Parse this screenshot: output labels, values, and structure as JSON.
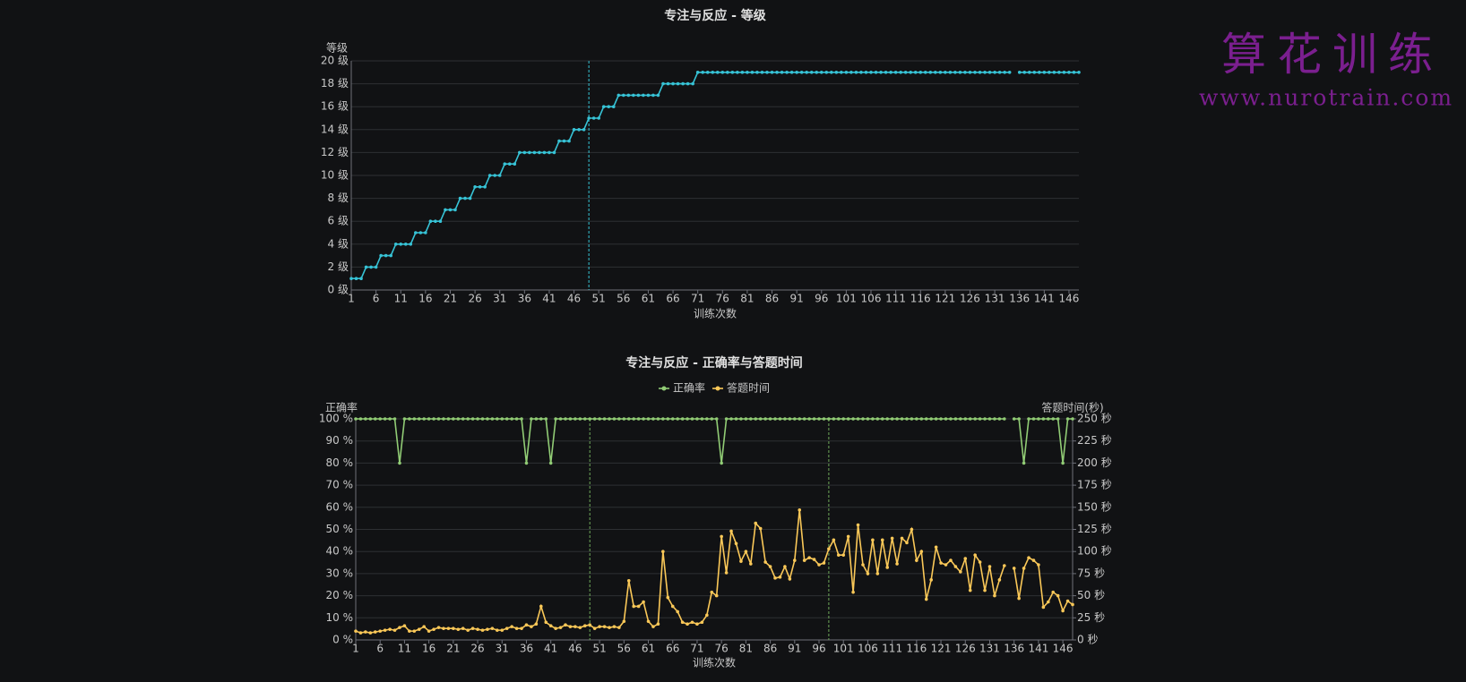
{
  "logo": {
    "title": "算花训练",
    "url": "www.nurotrain.com"
  },
  "chart_data": [
    {
      "type": "line",
      "title": "专注与反应 - 等级",
      "x_label": "训练次数",
      "y_label": "等级",
      "x": [
        1,
        2,
        3,
        4,
        5,
        6,
        7,
        8,
        9,
        10,
        11,
        12,
        13,
        14,
        15,
        16,
        17,
        18,
        19,
        20,
        21,
        22,
        23,
        24,
        25,
        26,
        27,
        28,
        29,
        30,
        31,
        32,
        33,
        34,
        35,
        36,
        37,
        38,
        39,
        40,
        41,
        42,
        43,
        44,
        45,
        46,
        47,
        48,
        49,
        50,
        51,
        52,
        53,
        54,
        55,
        56,
        57,
        58,
        59,
        60,
        61,
        62,
        63,
        64,
        65,
        66,
        67,
        68,
        69,
        70,
        71,
        72,
        73,
        74,
        75,
        76,
        77,
        78,
        79,
        80,
        81,
        82,
        83,
        84,
        85,
        86,
        87,
        88,
        89,
        90,
        91,
        92,
        93,
        94,
        95,
        96,
        97,
        98,
        99,
        100,
        101,
        102,
        103,
        104,
        105,
        106,
        107,
        108,
        109,
        110,
        111,
        112,
        113,
        114,
        115,
        116,
        117,
        118,
        119,
        120,
        121,
        122,
        123,
        124,
        125,
        126,
        127,
        128,
        129,
        130,
        131,
        132,
        133,
        134,
        135,
        136,
        137,
        138,
        139,
        140,
        141,
        142,
        143,
        144,
        145,
        146,
        147,
        148
      ],
      "xlim": [
        1,
        148
      ],
      "xticks": [
        1,
        6,
        11,
        16,
        21,
        26,
        31,
        36,
        41,
        46,
        51,
        56,
        61,
        66,
        71,
        76,
        81,
        86,
        91,
        96,
        101,
        106,
        111,
        116,
        121,
        126,
        131,
        136,
        141,
        146
      ],
      "ylim": [
        0,
        20
      ],
      "yticks": [
        {
          "value": 0,
          "label": "0 级"
        },
        {
          "value": 2,
          "label": "2 级"
        },
        {
          "value": 4,
          "label": "4 级"
        },
        {
          "value": 6,
          "label": "6 级"
        },
        {
          "value": 8,
          "label": "8 级"
        },
        {
          "value": 10,
          "label": "10 级"
        },
        {
          "value": 12,
          "label": "12 级"
        },
        {
          "value": 14,
          "label": "14 级"
        },
        {
          "value": 16,
          "label": "16 级"
        },
        {
          "value": 18,
          "label": "18 级"
        },
        {
          "value": 20,
          "label": "20 级"
        }
      ],
      "grid": true,
      "mark_lines": [
        49
      ],
      "mark_line_color": "#37c3d6",
      "series": [
        {
          "color": "#37c3d6",
          "values": [
            1,
            1,
            1,
            2,
            2,
            2,
            3,
            3,
            3,
            4,
            4,
            4,
            4,
            5,
            5,
            5,
            6,
            6,
            6,
            7,
            7,
            7,
            8,
            8,
            8,
            9,
            9,
            9,
            10,
            10,
            10,
            11,
            11,
            11,
            12,
            12,
            12,
            12,
            12,
            12,
            12,
            12,
            13,
            13,
            13,
            14,
            14,
            14,
            15,
            15,
            15,
            16,
            16,
            16,
            17,
            17,
            17,
            17,
            17,
            17,
            17,
            17,
            17,
            18,
            18,
            18,
            18,
            18,
            18,
            18,
            19,
            19,
            19,
            19,
            19,
            19,
            19,
            19,
            19,
            19,
            19,
            19,
            19,
            19,
            19,
            19,
            19,
            19,
            19,
            19,
            19,
            19,
            19,
            19,
            19,
            19,
            19,
            19,
            19,
            19,
            19,
            19,
            19,
            19,
            19,
            19,
            19,
            19,
            19,
            19,
            19,
            19,
            19,
            19,
            19,
            19,
            19,
            19,
            19,
            19,
            19,
            19,
            19,
            19,
            19,
            19,
            19,
            19,
            19,
            19,
            19,
            19,
            19,
            19,
            null,
            19,
            19,
            19,
            19,
            19,
            19,
            19,
            19,
            19,
            19,
            19,
            19,
            19
          ]
        }
      ]
    },
    {
      "type": "line",
      "title": "专注与反应 - 正确率与答题时间",
      "x_label": "训练次数",
      "y_label": "正确率",
      "y2_label": "答题时间(秒)",
      "legend": "top",
      "x": [
        1,
        2,
        3,
        4,
        5,
        6,
        7,
        8,
        9,
        10,
        11,
        12,
        13,
        14,
        15,
        16,
        17,
        18,
        19,
        20,
        21,
        22,
        23,
        24,
        25,
        26,
        27,
        28,
        29,
        30,
        31,
        32,
        33,
        34,
        35,
        36,
        37,
        38,
        39,
        40,
        41,
        42,
        43,
        44,
        45,
        46,
        47,
        48,
        49,
        50,
        51,
        52,
        53,
        54,
        55,
        56,
        57,
        58,
        59,
        60,
        61,
        62,
        63,
        64,
        65,
        66,
        67,
        68,
        69,
        70,
        71,
        72,
        73,
        74,
        75,
        76,
        77,
        78,
        79,
        80,
        81,
        82,
        83,
        84,
        85,
        86,
        87,
        88,
        89,
        90,
        91,
        92,
        93,
        94,
        95,
        96,
        97,
        98,
        99,
        100,
        101,
        102,
        103,
        104,
        105,
        106,
        107,
        108,
        109,
        110,
        111,
        112,
        113,
        114,
        115,
        116,
        117,
        118,
        119,
        120,
        121,
        122,
        123,
        124,
        125,
        126,
        127,
        128,
        129,
        130,
        131,
        132,
        133,
        134,
        135,
        136,
        137,
        138,
        139,
        140,
        141,
        142,
        143,
        144,
        145,
        146,
        147,
        148
      ],
      "xlim": [
        1,
        148
      ],
      "xticks": [
        1,
        6,
        11,
        16,
        21,
        26,
        31,
        36,
        41,
        46,
        51,
        56,
        61,
        66,
        71,
        76,
        81,
        86,
        91,
        96,
        101,
        106,
        111,
        116,
        121,
        126,
        131,
        136,
        141,
        146
      ],
      "ylim": [
        0,
        100
      ],
      "yticks": [
        {
          "value": 0,
          "label": "0 %"
        },
        {
          "value": 10,
          "label": "10 %"
        },
        {
          "value": 20,
          "label": "20 %"
        },
        {
          "value": 30,
          "label": "30 %"
        },
        {
          "value": 40,
          "label": "40 %"
        },
        {
          "value": 50,
          "label": "50 %"
        },
        {
          "value": 60,
          "label": "60 %"
        },
        {
          "value": 70,
          "label": "70 %"
        },
        {
          "value": 80,
          "label": "80 %"
        },
        {
          "value": 90,
          "label": "90 %"
        },
        {
          "value": 100,
          "label": "100 %"
        }
      ],
      "y2lim": [
        0,
        250
      ],
      "y2ticks": [
        {
          "value": 0,
          "label": "0 秒"
        },
        {
          "value": 25,
          "label": "25 秒"
        },
        {
          "value": 50,
          "label": "50 秒"
        },
        {
          "value": 75,
          "label": "75 秒"
        },
        {
          "value": 100,
          "label": "100 秒"
        },
        {
          "value": 125,
          "label": "125 秒"
        },
        {
          "value": 150,
          "label": "150 秒"
        },
        {
          "value": 175,
          "label": "175 秒"
        },
        {
          "value": 200,
          "label": "200 秒"
        },
        {
          "value": 225,
          "label": "225 秒"
        },
        {
          "value": 250,
          "label": "250 秒"
        }
      ],
      "grid": true,
      "mark_lines": [
        49,
        98
      ],
      "mark_line_color": "#6fa85a",
      "series": [
        {
          "name": "正确率",
          "color": "#91cc75",
          "values": [
            100,
            100,
            100,
            100,
            100,
            100,
            100,
            100,
            100,
            80,
            100,
            100,
            100,
            100,
            100,
            100,
            100,
            100,
            100,
            100,
            100,
            100,
            100,
            100,
            100,
            100,
            100,
            100,
            100,
            100,
            100,
            100,
            100,
            100,
            100,
            80,
            100,
            100,
            100,
            100,
            80,
            100,
            100,
            100,
            100,
            100,
            100,
            100,
            100,
            100,
            100,
            100,
            100,
            100,
            100,
            100,
            100,
            100,
            100,
            100,
            100,
            100,
            100,
            100,
            100,
            100,
            100,
            100,
            100,
            100,
            100,
            100,
            100,
            100,
            100,
            80,
            100,
            100,
            100,
            100,
            100,
            100,
            100,
            100,
            100,
            100,
            100,
            100,
            100,
            100,
            100,
            100,
            100,
            100,
            100,
            100,
            100,
            100,
            100,
            100,
            100,
            100,
            100,
            100,
            100,
            100,
            100,
            100,
            100,
            100,
            100,
            100,
            100,
            100,
            100,
            100,
            100,
            100,
            100,
            100,
            100,
            100,
            100,
            100,
            100,
            100,
            100,
            100,
            100,
            100,
            100,
            100,
            100,
            100,
            null,
            100,
            100,
            80,
            100,
            100,
            100,
            100,
            100,
            100,
            100,
            80,
            100,
            100
          ]
        },
        {
          "name": "答题时间",
          "color": "#fac858",
          "axis": "y2",
          "values": [
            10,
            8,
            9,
            8,
            9,
            10,
            11,
            12,
            11,
            14,
            16,
            10,
            10,
            12,
            15,
            10,
            12,
            14,
            13,
            13,
            13,
            12,
            13,
            11,
            13,
            12,
            11,
            12,
            13,
            11,
            11,
            13,
            15,
            13,
            13,
            17,
            15,
            18,
            38,
            20,
            16,
            13,
            14,
            17,
            15,
            15,
            14,
            16,
            17,
            13,
            15,
            15,
            14,
            15,
            14,
            21,
            67,
            38,
            38,
            43,
            21,
            15,
            18,
            100,
            48,
            38,
            32,
            20,
            18,
            20,
            18,
            20,
            28,
            54,
            50,
            117,
            76,
            123,
            109,
            89,
            100,
            86,
            132,
            126,
            88,
            83,
            70,
            71,
            83,
            69,
            90,
            147,
            90,
            93,
            91,
            85,
            87,
            103,
            113,
            96,
            96,
            117,
            54,
            130,
            85,
            75,
            113,
            75,
            113,
            82,
            115,
            86,
            115,
            110,
            125,
            90,
            100,
            46,
            68,
            105,
            87,
            85,
            90,
            83,
            77,
            92,
            56,
            96,
            88,
            56,
            83,
            50,
            68,
            84,
            null,
            81,
            47,
            81,
            93,
            90,
            85,
            37,
            43,
            54,
            50,
            33,
            44,
            40
          ]
        }
      ]
    }
  ]
}
